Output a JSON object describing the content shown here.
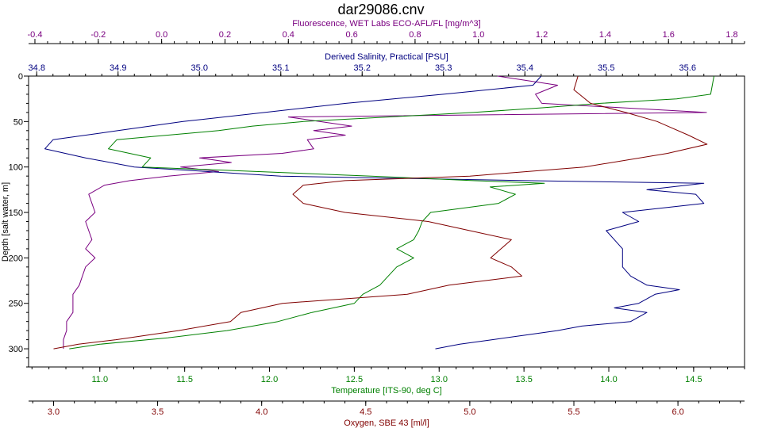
{
  "chart_data": {
    "type": "line",
    "title": "dar29086.cnv",
    "ylabel": "Depth [salt water, m]",
    "ylim": [
      0,
      320
    ],
    "y_reversed": true,
    "yticks": [
      0,
      50,
      100,
      150,
      200,
      250,
      300
    ],
    "grid": false,
    "legend": "none",
    "axes": {
      "fluorescence": {
        "label": "Fluorescence, WET Labs ECO-AFL/FL [mg/m^3]",
        "position": "top-outer",
        "color": "#7a0080",
        "range": [
          -0.42,
          1.84
        ],
        "ticks": [
          -0.4,
          -0.2,
          0.0,
          0.2,
          0.4,
          0.6,
          0.8,
          1.0,
          1.2,
          1.4,
          1.6,
          1.8
        ],
        "tick_labels": [
          "-0.4",
          "-0.2",
          "0.0",
          "0.2",
          "0.4",
          "0.6",
          "0.8",
          "1.0",
          "1.2",
          "1.4",
          "1.6",
          "1.8"
        ]
      },
      "salinity": {
        "label": "Derived Salinity, Practical [PSU]",
        "position": "top-inner",
        "color": "#000080",
        "range": [
          34.79,
          35.67
        ],
        "ticks": [
          34.8,
          34.9,
          35.0,
          35.1,
          35.2,
          35.3,
          35.4,
          35.5,
          35.6
        ],
        "tick_labels": [
          "34.8",
          "34.9",
          "35.0",
          "35.1",
          "35.2",
          "35.3",
          "35.4",
          "35.5",
          "35.6"
        ]
      },
      "temperature": {
        "label": "Temperature [ITS-90, deg C]",
        "position": "bottom-inner",
        "color": "#008000",
        "range": [
          10.58,
          14.8
        ],
        "ticks": [
          11.0,
          11.5,
          12.0,
          12.5,
          13.0,
          13.5,
          14.0,
          14.5
        ],
        "tick_labels": [
          "11.0",
          "11.5",
          "12.0",
          "12.5",
          "13.0",
          "13.5",
          "14.0",
          "14.5"
        ]
      },
      "oxygen": {
        "label": "Oxygen, SBE 43 [ml/l]",
        "position": "bottom-outer",
        "color": "#800000",
        "range": [
          2.88,
          6.32
        ],
        "ticks": [
          3.0,
          3.5,
          4.0,
          4.5,
          5.0,
          5.5,
          6.0
        ],
        "tick_labels": [
          "3.0",
          "3.5",
          "4.0",
          "4.5",
          "5.0",
          "5.5",
          "6.0"
        ]
      }
    },
    "series": [
      {
        "axis": "fluorescence",
        "color": "#7a0080",
        "points": [
          [
            0.0,
            1.06
          ],
          [
            10,
            1.25
          ],
          [
            20,
            1.18
          ],
          [
            30,
            1.2
          ],
          [
            40,
            1.72
          ],
          [
            45,
            0.4
          ],
          [
            55,
            0.6
          ],
          [
            60,
            0.48
          ],
          [
            65,
            0.58
          ],
          [
            70,
            0.46
          ],
          [
            80,
            0.48
          ],
          [
            85,
            0.38
          ],
          [
            90,
            0.12
          ],
          [
            95,
            0.22
          ],
          [
            100,
            0.06
          ],
          [
            105,
            0.18
          ],
          [
            110,
            0.02
          ],
          [
            115,
            -0.1
          ],
          [
            120,
            -0.18
          ],
          [
            130,
            -0.23
          ],
          [
            140,
            -0.22
          ],
          [
            150,
            -0.21
          ],
          [
            160,
            -0.24
          ],
          [
            170,
            -0.23
          ],
          [
            180,
            -0.22
          ],
          [
            190,
            -0.24
          ],
          [
            200,
            -0.21
          ],
          [
            210,
            -0.24
          ],
          [
            220,
            -0.25
          ],
          [
            230,
            -0.26
          ],
          [
            240,
            -0.28
          ],
          [
            250,
            -0.28
          ],
          [
            260,
            -0.28
          ],
          [
            270,
            -0.3
          ],
          [
            280,
            -0.3
          ],
          [
            290,
            -0.31
          ],
          [
            300,
            -0.31
          ]
        ]
      },
      {
        "axis": "salinity",
        "color": "#000080",
        "points": [
          [
            0,
            35.42
          ],
          [
            10,
            35.41
          ],
          [
            20,
            35.3
          ],
          [
            30,
            35.18
          ],
          [
            40,
            35.08
          ],
          [
            50,
            34.98
          ],
          [
            60,
            34.9
          ],
          [
            70,
            34.82
          ],
          [
            80,
            34.81
          ],
          [
            90,
            34.86
          ],
          [
            100,
            34.92
          ],
          [
            110,
            35.1
          ],
          [
            115,
            35.4
          ],
          [
            118,
            35.62
          ],
          [
            125,
            35.55
          ],
          [
            130,
            35.61
          ],
          [
            140,
            35.62
          ],
          [
            150,
            35.52
          ],
          [
            160,
            35.54
          ],
          [
            170,
            35.5
          ],
          [
            180,
            35.51
          ],
          [
            190,
            35.52
          ],
          [
            200,
            35.52
          ],
          [
            210,
            35.52
          ],
          [
            220,
            35.53
          ],
          [
            230,
            35.55
          ],
          [
            235,
            35.59
          ],
          [
            240,
            35.56
          ],
          [
            250,
            35.54
          ],
          [
            255,
            35.51
          ],
          [
            260,
            35.55
          ],
          [
            270,
            35.53
          ],
          [
            275,
            35.47
          ],
          [
            280,
            35.44
          ],
          [
            285,
            35.4
          ],
          [
            290,
            35.36
          ],
          [
            295,
            35.32
          ],
          [
            300,
            35.29
          ]
        ]
      },
      {
        "axis": "temperature",
        "color": "#008000",
        "points": [
          [
            0,
            14.62
          ],
          [
            20,
            14.6
          ],
          [
            25,
            14.4
          ],
          [
            30,
            13.95
          ],
          [
            35,
            13.6
          ],
          [
            40,
            13.2
          ],
          [
            45,
            12.7
          ],
          [
            50,
            12.2
          ],
          [
            55,
            11.9
          ],
          [
            60,
            11.7
          ],
          [
            70,
            11.1
          ],
          [
            80,
            11.05
          ],
          [
            90,
            11.3
          ],
          [
            100,
            11.25
          ],
          [
            110,
            12.6
          ],
          [
            115,
            13.2
          ],
          [
            118,
            13.62
          ],
          [
            122,
            13.3
          ],
          [
            130,
            13.45
          ],
          [
            140,
            13.35
          ],
          [
            150,
            12.95
          ],
          [
            160,
            12.9
          ],
          [
            170,
            12.88
          ],
          [
            180,
            12.85
          ],
          [
            190,
            12.75
          ],
          [
            200,
            12.85
          ],
          [
            210,
            12.75
          ],
          [
            220,
            12.7
          ],
          [
            230,
            12.65
          ],
          [
            240,
            12.55
          ],
          [
            250,
            12.5
          ],
          [
            260,
            12.25
          ],
          [
            270,
            12.05
          ],
          [
            280,
            11.75
          ],
          [
            288,
            11.4
          ],
          [
            295,
            11.0
          ],
          [
            300,
            10.82
          ]
        ]
      },
      {
        "axis": "oxygen",
        "color": "#800000",
        "points": [
          [
            0,
            5.52
          ],
          [
            15,
            5.5
          ],
          [
            30,
            5.58
          ],
          [
            40,
            5.75
          ],
          [
            50,
            5.9
          ],
          [
            55,
            5.95
          ],
          [
            65,
            6.05
          ],
          [
            75,
            6.14
          ],
          [
            85,
            5.95
          ],
          [
            100,
            5.55
          ],
          [
            110,
            5.0
          ],
          [
            115,
            4.4
          ],
          [
            120,
            4.2
          ],
          [
            130,
            4.15
          ],
          [
            140,
            4.2
          ],
          [
            150,
            4.4
          ],
          [
            160,
            4.8
          ],
          [
            170,
            5.0
          ],
          [
            180,
            5.2
          ],
          [
            190,
            5.15
          ],
          [
            200,
            5.1
          ],
          [
            210,
            5.2
          ],
          [
            220,
            5.25
          ],
          [
            230,
            4.9
          ],
          [
            240,
            4.7
          ],
          [
            250,
            4.1
          ],
          [
            260,
            3.9
          ],
          [
            270,
            3.85
          ],
          [
            280,
            3.6
          ],
          [
            290,
            3.3
          ],
          [
            295,
            3.12
          ],
          [
            300,
            3.0
          ]
        ]
      }
    ]
  }
}
